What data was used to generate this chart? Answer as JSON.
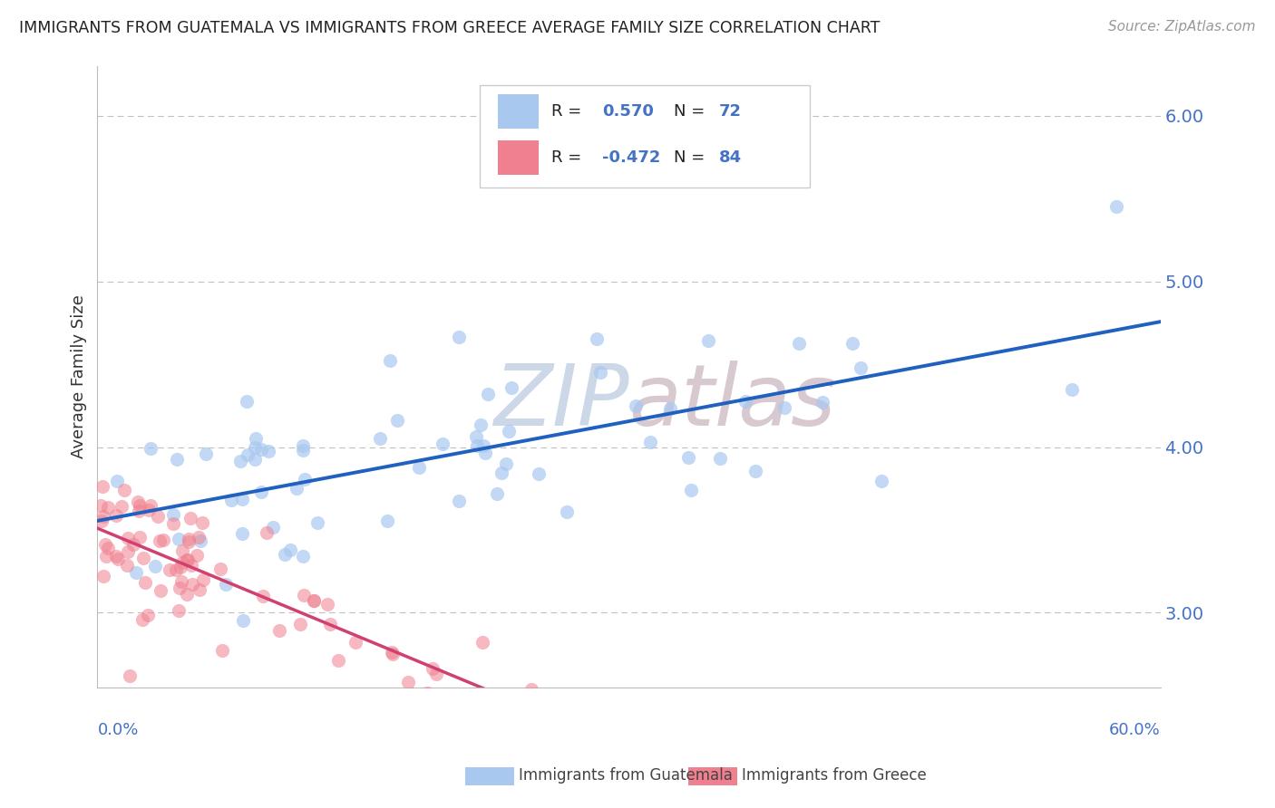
{
  "title": "IMMIGRANTS FROM GUATEMALA VS IMMIGRANTS FROM GREECE AVERAGE FAMILY SIZE CORRELATION CHART",
  "source": "Source: ZipAtlas.com",
  "ylabel": "Average Family Size",
  "y_ticks": [
    3.0,
    4.0,
    5.0,
    6.0
  ],
  "x_min": 0.0,
  "x_max": 0.6,
  "y_min": 2.55,
  "y_max": 6.3,
  "legend1_R": "0.570",
  "legend1_N": "72",
  "legend2_R": "-0.472",
  "legend2_N": "84",
  "color_guatemala": "#a8c8f0",
  "color_greece": "#f08090",
  "trendline_guatemala": "#2060c0",
  "trendline_greece": "#d04070",
  "watermark_zip": "#ccd8e8",
  "watermark_atlas": "#d8c8d0",
  "background_color": "#ffffff",
  "grid_color": "#c0c0c0"
}
